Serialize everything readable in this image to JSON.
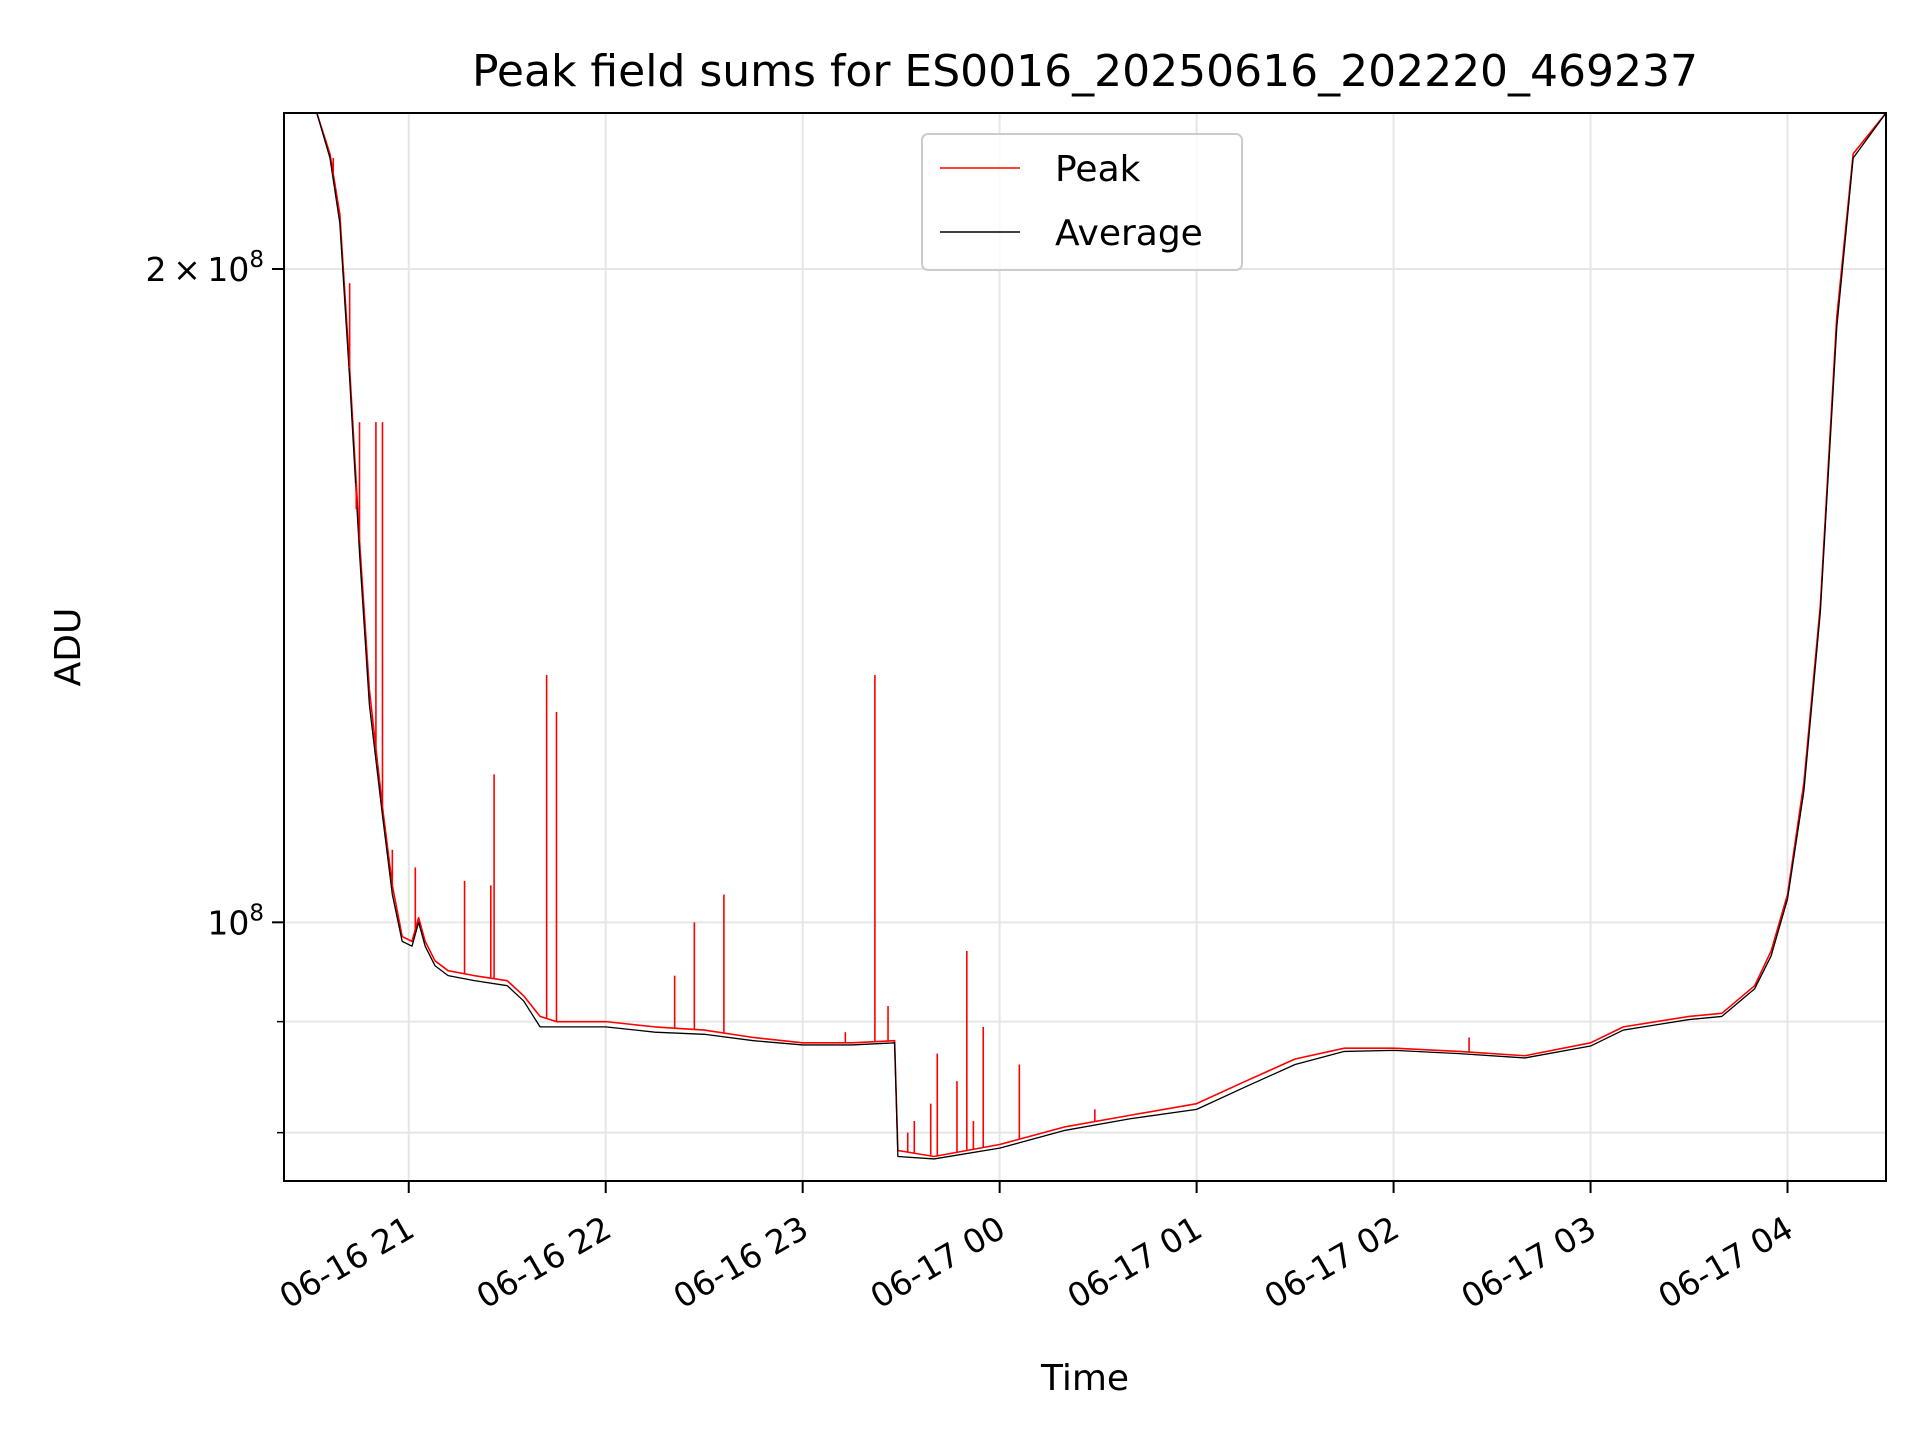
{
  "chart_data": {
    "type": "line",
    "title": "Peak field sums for ES0016_20250616_202220_469237",
    "xlabel": "Time",
    "ylabel": "ADU",
    "yscale": "log",
    "ylim": [
      76000000,
      236000000
    ],
    "xlim": [
      "2025-06-16 20:22",
      "2025-06-17 04:30"
    ],
    "grid": true,
    "legend": {
      "position": "top-center"
    },
    "x_ticks": [
      {
        "value": "2025-06-16 21:00",
        "label": "06-16 21"
      },
      {
        "value": "2025-06-16 22:00",
        "label": "06-16 22"
      },
      {
        "value": "2025-06-16 23:00",
        "label": "06-16 23"
      },
      {
        "value": "2025-06-17 00:00",
        "label": "06-17 00"
      },
      {
        "value": "2025-06-17 01:00",
        "label": "06-17 01"
      },
      {
        "value": "2025-06-17 02:00",
        "label": "06-17 02"
      },
      {
        "value": "2025-06-17 03:00",
        "label": "06-17 03"
      },
      {
        "value": "2025-06-17 04:00",
        "label": "06-17 04"
      }
    ],
    "y_ticks": [
      {
        "value": 100000000,
        "base": "10",
        "exp": "8"
      },
      {
        "value": 200000000,
        "mant": "2",
        "base": "10",
        "exp": "8"
      }
    ],
    "y_minor_ticks": [
      80000000,
      90000000
    ],
    "series": [
      {
        "name": "Peak",
        "color": "#ff0000",
        "x": [
          "2025-06-16 20:22",
          "2025-06-16 20:32",
          "2025-06-16 20:36",
          "2025-06-16 20:39",
          "2025-06-16 20:42",
          "2025-06-16 20:45",
          "2025-06-16 20:48",
          "2025-06-16 20:52",
          "2025-06-16 20:55",
          "2025-06-16 20:58",
          "2025-06-16 21:01",
          "2025-06-16 21:03",
          "2025-06-16 21:05",
          "2025-06-16 21:08",
          "2025-06-16 21:12",
          "2025-06-16 21:20",
          "2025-06-16 21:30",
          "2025-06-16 21:35",
          "2025-06-16 21:40",
          "2025-06-16 21:45",
          "2025-06-16 21:50",
          "2025-06-16 22:00",
          "2025-06-16 22:15",
          "2025-06-16 22:30",
          "2025-06-16 22:45",
          "2025-06-16 23:00",
          "2025-06-16 23:15",
          "2025-06-16 23:28",
          "2025-06-16 23:29",
          "2025-06-16 23:40",
          "2025-06-17 00:00",
          "2025-06-17 00:20",
          "2025-06-17 00:40",
          "2025-06-17 01:00",
          "2025-06-17 01:15",
          "2025-06-17 01:30",
          "2025-06-17 01:45",
          "2025-06-17 02:00",
          "2025-06-17 02:20",
          "2025-06-17 02:40",
          "2025-06-17 03:00",
          "2025-06-17 03:10",
          "2025-06-17 03:30",
          "2025-06-17 03:40",
          "2025-06-17 03:50",
          "2025-06-17 03:55",
          "2025-06-17 04:00",
          "2025-06-17 04:05",
          "2025-06-17 04:10",
          "2025-06-17 04:15",
          "2025-06-17 04:20",
          "2025-06-17 04:30"
        ],
        "y": [
          236000000,
          236000000,
          226000000,
          212000000,
          180000000,
          150000000,
          128000000,
          113000000,
          104000000,
          98500000,
          98000000,
          100500000,
          98000000,
          96000000,
          95000000,
          94500000,
          94000000,
          92500000,
          90500000,
          90000000,
          90000000,
          90000000,
          89500000,
          89200000,
          88500000,
          88000000,
          88000000,
          88200000,
          78500000,
          78000000,
          79000000,
          80500000,
          81500000,
          82500000,
          84500000,
          86500000,
          87500000,
          87500000,
          87200000,
          86800000,
          88000000,
          89500000,
          90500000,
          90800000,
          93500000,
          97000000,
          103000000,
          116000000,
          140000000,
          190000000,
          226000000,
          236000000
        ]
      },
      {
        "name": "Average",
        "color": "#000000",
        "x": [
          "2025-06-16 20:22",
          "2025-06-16 20:32",
          "2025-06-16 20:36",
          "2025-06-16 20:39",
          "2025-06-16 20:42",
          "2025-06-16 20:45",
          "2025-06-16 20:48",
          "2025-06-16 20:52",
          "2025-06-16 20:55",
          "2025-06-16 20:58",
          "2025-06-16 21:01",
          "2025-06-16 21:03",
          "2025-06-16 21:05",
          "2025-06-16 21:08",
          "2025-06-16 21:12",
          "2025-06-16 21:20",
          "2025-06-16 21:30",
          "2025-06-16 21:35",
          "2025-06-16 21:40",
          "2025-06-16 21:45",
          "2025-06-16 21:50",
          "2025-06-16 22:00",
          "2025-06-16 22:15",
          "2025-06-16 22:30",
          "2025-06-16 22:45",
          "2025-06-16 23:00",
          "2025-06-16 23:15",
          "2025-06-16 23:28",
          "2025-06-16 23:29",
          "2025-06-16 23:40",
          "2025-06-17 00:00",
          "2025-06-17 00:20",
          "2025-06-17 00:40",
          "2025-06-17 01:00",
          "2025-06-17 01:15",
          "2025-06-17 01:30",
          "2025-06-17 01:45",
          "2025-06-17 02:00",
          "2025-06-17 02:20",
          "2025-06-17 02:40",
          "2025-06-17 03:00",
          "2025-06-17 03:10",
          "2025-06-17 03:30",
          "2025-06-17 03:40",
          "2025-06-17 03:50",
          "2025-06-17 03:55",
          "2025-06-17 04:00",
          "2025-06-17 04:05",
          "2025-06-17 04:10",
          "2025-06-17 04:15",
          "2025-06-17 04:20",
          "2025-06-17 04:30"
        ],
        "y": [
          236000000,
          236000000,
          225000000,
          210000000,
          178000000,
          148000000,
          126000000,
          112000000,
          103000000,
          98000000,
          97500000,
          100000000,
          97500000,
          95500000,
          94500000,
          94000000,
          93500000,
          92000000,
          89500000,
          89500000,
          89500000,
          89500000,
          89000000,
          88800000,
          88200000,
          87800000,
          87800000,
          88000000,
          78000000,
          77800000,
          78700000,
          80200000,
          81200000,
          82000000,
          84000000,
          86000000,
          87200000,
          87300000,
          87000000,
          86600000,
          87700000,
          89200000,
          90200000,
          90500000,
          93200000,
          96500000,
          102500000,
          115000000,
          139000000,
          188000000,
          225000000,
          236000000
        ]
      }
    ],
    "spikes": {
      "series": "Peak",
      "x": [
        "2025-06-16 20:37",
        "2025-06-16 20:42",
        "2025-06-16 20:44",
        "2025-06-16 20:45",
        "2025-06-16 20:50",
        "2025-06-16 20:52",
        "2025-06-16 20:55",
        "2025-06-16 21:02",
        "2025-06-16 21:17",
        "2025-06-16 21:25",
        "2025-06-16 21:26",
        "2025-06-16 21:42",
        "2025-06-16 21:45",
        "2025-06-16 22:21",
        "2025-06-16 22:27",
        "2025-06-16 22:36",
        "2025-06-16 23:13",
        "2025-06-16 23:22",
        "2025-06-16 23:26",
        "2025-06-16 23:32",
        "2025-06-16 23:34",
        "2025-06-16 23:39",
        "2025-06-16 23:41",
        "2025-06-16 23:47",
        "2025-06-16 23:50",
        "2025-06-16 23:52",
        "2025-06-16 23:55",
        "2025-06-17 00:06",
        "2025-06-17 00:29",
        "2025-06-17 02:23"
      ],
      "y": [
        225000000,
        197000000,
        155000000,
        170000000,
        170000000,
        170000000,
        108000000,
        106000000,
        104500000,
        104000000,
        117000000,
        130000000,
        125000000,
        94500000,
        100000000,
        103000000,
        89000000,
        130000000,
        91500000,
        80000000,
        81000000,
        82500000,
        87000000,
        84500000,
        97000000,
        81000000,
        89500000,
        86000000,
        82000000,
        88500000
      ]
    }
  }
}
